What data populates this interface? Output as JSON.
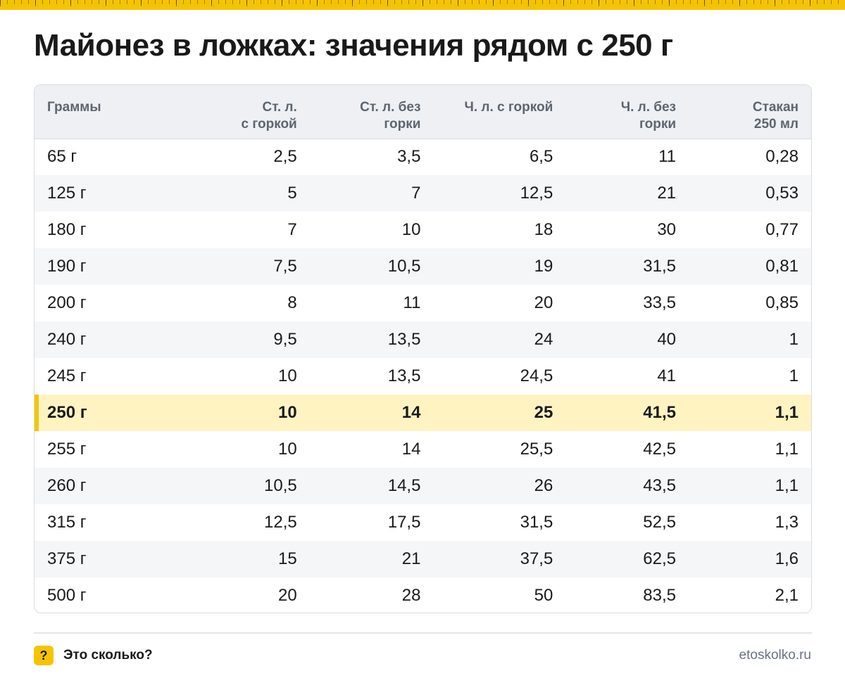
{
  "title": "Майонез в ложках: значения рядом с 250 г",
  "table": {
    "headers": [
      [
        "Граммы"
      ],
      [
        "Ст. л.",
        "с горкой"
      ],
      [
        "Ст. л. без",
        "горки"
      ],
      [
        "Ч. л. с горкой"
      ],
      [
        "Ч. л. без",
        "горки"
      ],
      [
        "Стакан",
        "250 мл"
      ]
    ],
    "highlight_row": 7,
    "rows": [
      [
        "65 г",
        "2,5",
        "3,5",
        "6,5",
        "11",
        "0,28"
      ],
      [
        "125 г",
        "5",
        "7",
        "12,5",
        "21",
        "0,53"
      ],
      [
        "180 г",
        "7",
        "10",
        "18",
        "30",
        "0,77"
      ],
      [
        "190 г",
        "7,5",
        "10,5",
        "19",
        "31,5",
        "0,81"
      ],
      [
        "200 г",
        "8",
        "11",
        "20",
        "33,5",
        "0,85"
      ],
      [
        "240 г",
        "9,5",
        "13,5",
        "24",
        "40",
        "1"
      ],
      [
        "245 г",
        "10",
        "13,5",
        "24,5",
        "41",
        "1"
      ],
      [
        "250 г",
        "10",
        "14",
        "25",
        "41,5",
        "1,1"
      ],
      [
        "255 г",
        "10",
        "14",
        "25,5",
        "42,5",
        "1,1"
      ],
      [
        "260 г",
        "10,5",
        "14,5",
        "26",
        "43,5",
        "1,1"
      ],
      [
        "315 г",
        "12,5",
        "17,5",
        "31,5",
        "52,5",
        "1,3"
      ],
      [
        "375 г",
        "15",
        "21",
        "37,5",
        "62,5",
        "1,6"
      ],
      [
        "500 г",
        "20",
        "28",
        "50",
        "83,5",
        "2,1"
      ]
    ]
  },
  "footer": {
    "brand_icon": "?",
    "brand_name": "Это сколько?",
    "site": "etoskolko.ru"
  },
  "colors": {
    "accent": "#f5c400",
    "highlight_bg": "#fff3c2",
    "header_bg": "#eef0f3",
    "border": "#d8dbe0"
  }
}
